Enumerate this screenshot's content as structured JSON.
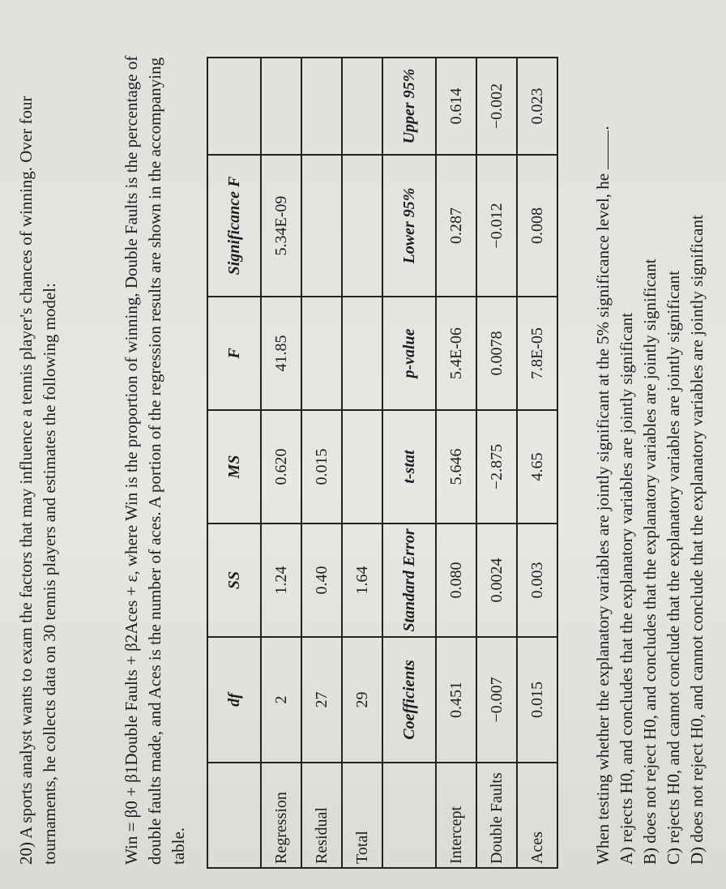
{
  "question": {
    "number": "20)",
    "intro": "A sports analyst wants to exam the factors that may influence a tennis player's chances of winning. Over four tournaments, he collects data on 30 tennis players and estimates the following model:",
    "model": "Win = β0 + β1Double Faults + β2Aces + ε, where Win is the proportion of winning, Double Faults is the percentage of double faults made, and Aces is the number of aces. A portion of the regression results are shown in the accompanying table.",
    "stem": "When testing whether the explanatory variables are jointly significant at the 5% significance level, he",
    "options": [
      "A) rejects H0, and concludes that the explanatory variables are jointly significant",
      "B) does not reject H0, and concludes that the explanatory variables are jointly significant",
      "C) rejects H0, and cannot conclude that the explanatory variables are jointly significant",
      "D) does not reject H0, and cannot conclude that the explanatory variables are jointly significant"
    ]
  },
  "table": {
    "rows": [
      [
        null,
        "df",
        "SS",
        "MS",
        "F",
        "Significance F",
        null
      ],
      [
        "Regression",
        "2",
        "1.24",
        "0.620",
        "41.85",
        "5.34E-09",
        null
      ],
      [
        "Residual",
        "27",
        "0.40",
        "0.015",
        null,
        null,
        null
      ],
      [
        "Total",
        "29",
        "1.64",
        null,
        null,
        null,
        null
      ],
      [
        null,
        "Coefficients",
        "Standard Error",
        "t-stat",
        "p-value",
        "Lower 95%",
        "Upper 95%"
      ],
      [
        "Intercept",
        "0.451",
        "0.080",
        "5.646",
        "5.4E-06",
        "0.287",
        "0.614"
      ],
      [
        "Double Faults",
        "−0.007",
        "0.0024",
        "−2.875",
        "0.0078",
        "−0.012",
        "−0.002"
      ],
      [
        "Aces",
        "0.015",
        "0.003",
        "4.65",
        "7.8E-05",
        "0.008",
        "0.023"
      ]
    ],
    "header_rows": [
      0,
      4
    ]
  }
}
